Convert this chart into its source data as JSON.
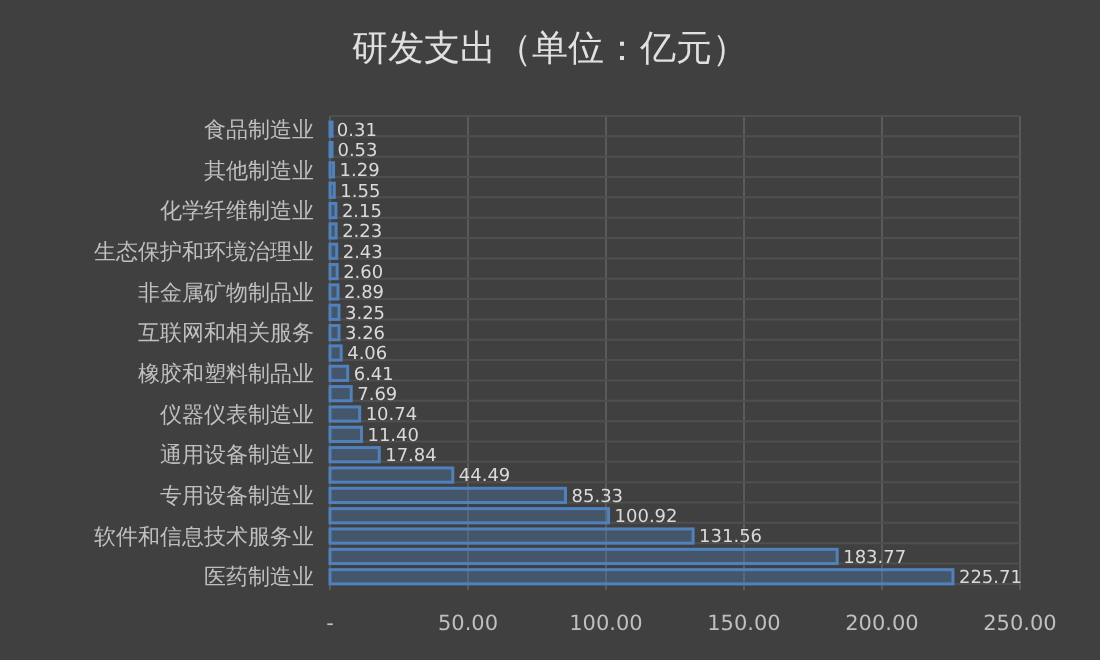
{
  "chart_data": {
    "type": "bar",
    "orientation": "horizontal",
    "title": "研发支出（单位：亿元）",
    "categories": [
      "食品制造业",
      null,
      "其他制造业",
      null,
      "化学纤维制造业",
      null,
      "生态保护和环境治理业",
      null,
      "非金属矿物制品业",
      null,
      "互联网和相关服务",
      null,
      "橡胶和塑料制品业",
      null,
      "仪器仪表制造业",
      null,
      "通用设备制造业",
      null,
      "专用设备制造业",
      null,
      "软件和信息技术服务业",
      null,
      "医药制造业"
    ],
    "values": [
      0.31,
      0.53,
      1.29,
      1.55,
      2.15,
      2.23,
      2.43,
      2.6,
      2.89,
      3.25,
      3.26,
      4.06,
      6.41,
      7.69,
      10.74,
      11.4,
      17.84,
      44.49,
      85.33,
      100.92,
      131.56,
      183.77,
      225.71
    ],
    "value_labels": [
      "0.31",
      "0.53",
      "1.29",
      "1.55",
      "2.15",
      "2.23",
      "2.43",
      "2.60",
      "2.89",
      "3.25",
      "3.26",
      "4.06",
      "6.41",
      "7.69",
      "10.74",
      "11.40",
      "17.84",
      "44.49",
      "85.33",
      "100.92",
      "131.56",
      "183.77",
      "225.71"
    ],
    "color": "#4f81bd",
    "xlim": [
      0,
      250
    ],
    "xticks": [
      {
        "value": 0,
        "label": "-"
      },
      {
        "value": 50,
        "label": "50.00"
      },
      {
        "value": 100,
        "label": "100.00"
      },
      {
        "value": 150,
        "label": "150.00"
      },
      {
        "value": 200,
        "label": "200.00"
      },
      {
        "value": 250,
        "label": "250.00"
      }
    ],
    "grid": true
  }
}
